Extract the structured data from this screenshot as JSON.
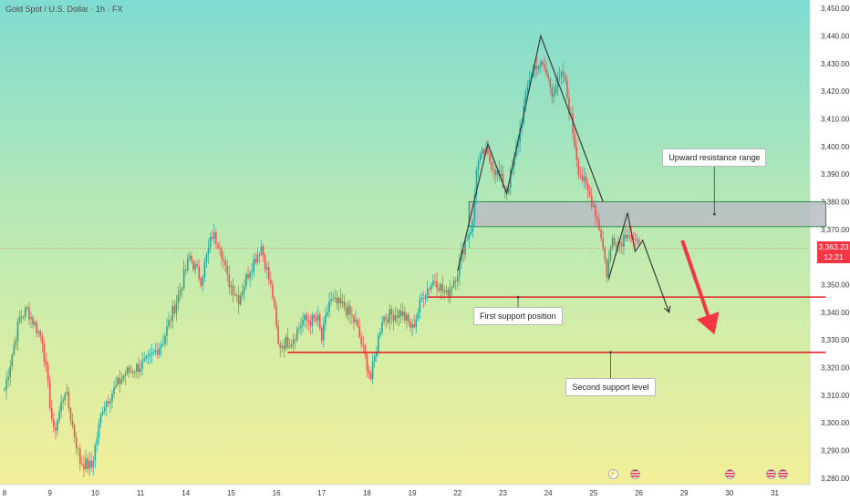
{
  "header": {
    "symbol_title": "Gold Spot / U.S. Dollar · 1h · FX"
  },
  "chart_data": {
    "type": "candlestick",
    "symbol": "Gold Spot / U.S. Dollar",
    "interval": "1h",
    "exchange": "FX",
    "ylim": [
      3275,
      3453
    ],
    "y_ticks": [
      3450,
      3440,
      3430,
      3420,
      3410,
      3400,
      3390,
      3380,
      3370,
      3360,
      3350,
      3340,
      3330,
      3320,
      3310,
      3300,
      3290,
      3280
    ],
    "y_tick_labels": [
      "3,450.00",
      "3,440.00",
      "3,430.00",
      "3,420.00",
      "3,410.00",
      "3,400.00",
      "3,390.00",
      "3,380.00",
      "3,370.00",
      "3,360.00",
      "3,350.00",
      "3,340.00",
      "3,330.00",
      "3,320.00",
      "3,310.00",
      "3,300.00",
      "3,290.00",
      "3,280.00"
    ],
    "x_ticks": [
      {
        "label": "8",
        "i": 0
      },
      {
        "label": "9",
        "i": 24
      },
      {
        "label": "10",
        "i": 48
      },
      {
        "label": "11",
        "i": 72
      },
      {
        "label": "14",
        "i": 96
      },
      {
        "label": "15",
        "i": 120
      },
      {
        "label": "16",
        "i": 144
      },
      {
        "label": "17",
        "i": 168
      },
      {
        "label": "18",
        "i": 192
      },
      {
        "label": "19",
        "i": 216
      },
      {
        "label": "22",
        "i": 240
      },
      {
        "label": "23",
        "i": 264
      },
      {
        "label": "24",
        "i": 288
      },
      {
        "label": "25",
        "i": 312
      },
      {
        "label": "26",
        "i": 336
      },
      {
        "label": "29",
        "i": 360
      },
      {
        "label": "30",
        "i": 384
      },
      {
        "label": "31",
        "i": 408
      }
    ],
    "current_price": {
      "value": 3363.23,
      "label": "3,363.23",
      "countdown": "12:21"
    },
    "anchors": [
      {
        "i": 0,
        "p": 3312
      },
      {
        "i": 8,
        "p": 3338
      },
      {
        "i": 12,
        "p": 3341
      },
      {
        "i": 20,
        "p": 3330
      },
      {
        "i": 26,
        "p": 3296
      },
      {
        "i": 32,
        "p": 3312
      },
      {
        "i": 40,
        "p": 3286
      },
      {
        "i": 46,
        "p": 3284
      },
      {
        "i": 52,
        "p": 3306
      },
      {
        "i": 64,
        "p": 3318
      },
      {
        "i": 76,
        "p": 3322
      },
      {
        "i": 84,
        "p": 3330
      },
      {
        "i": 92,
        "p": 3346
      },
      {
        "i": 98,
        "p": 3360
      },
      {
        "i": 104,
        "p": 3352
      },
      {
        "i": 110,
        "p": 3368
      },
      {
        "i": 114,
        "p": 3365
      },
      {
        "i": 118,
        "p": 3352
      },
      {
        "i": 124,
        "p": 3345
      },
      {
        "i": 130,
        "p": 3356
      },
      {
        "i": 136,
        "p": 3364
      },
      {
        "i": 142,
        "p": 3346
      },
      {
        "i": 145,
        "p": 3328
      },
      {
        "i": 152,
        "p": 3330
      },
      {
        "i": 158,
        "p": 3337
      },
      {
        "i": 166,
        "p": 3337
      },
      {
        "i": 168,
        "p": 3330
      },
      {
        "i": 172,
        "p": 3344
      },
      {
        "i": 180,
        "p": 3342
      },
      {
        "i": 186,
        "p": 3336
      },
      {
        "i": 190,
        "p": 3326
      },
      {
        "i": 194,
        "p": 3316
      },
      {
        "i": 200,
        "p": 3338
      },
      {
        "i": 210,
        "p": 3340
      },
      {
        "i": 216,
        "p": 3334
      },
      {
        "i": 222,
        "p": 3347
      },
      {
        "i": 228,
        "p": 3352
      },
      {
        "i": 234,
        "p": 3346
      },
      {
        "i": 240,
        "p": 3355
      },
      {
        "i": 244,
        "p": 3366
      },
      {
        "i": 248,
        "p": 3372
      },
      {
        "i": 250,
        "p": 3393
      },
      {
        "i": 254,
        "p": 3398
      },
      {
        "i": 258,
        "p": 3394
      },
      {
        "i": 262,
        "p": 3389
      },
      {
        "i": 266,
        "p": 3384
      },
      {
        "i": 270,
        "p": 3395
      },
      {
        "i": 274,
        "p": 3410
      },
      {
        "i": 278,
        "p": 3425
      },
      {
        "i": 282,
        "p": 3430
      },
      {
        "i": 286,
        "p": 3428
      },
      {
        "i": 290,
        "p": 3420
      },
      {
        "i": 296,
        "p": 3426
      },
      {
        "i": 300,
        "p": 3410
      },
      {
        "i": 304,
        "p": 3392
      },
      {
        "i": 308,
        "p": 3385
      },
      {
        "i": 312,
        "p": 3379
      },
      {
        "i": 316,
        "p": 3368
      },
      {
        "i": 319,
        "p": 3354
      },
      {
        "i": 322,
        "p": 3367
      },
      {
        "i": 326,
        "p": 3365
      },
      {
        "i": 330,
        "p": 3370
      },
      {
        "i": 334,
        "p": 3364
      },
      {
        "i": 336,
        "p": 3365
      }
    ],
    "zones": [
      {
        "name": "Upward resistance range",
        "top": 3380,
        "bottom": 3371,
        "i_start": 246,
        "i_end": 435
      }
    ],
    "lines": [
      {
        "name": "First support position",
        "price": 3345.5,
        "i_start": 224,
        "i_end": 435
      },
      {
        "name": "Second support level",
        "price": 3325.5,
        "i_start": 150,
        "i_end": 435
      }
    ],
    "pattern_path": [
      {
        "i": 240,
        "p": 3355
      },
      {
        "i": 256,
        "p": 3401
      },
      {
        "i": 266,
        "p": 3383
      },
      {
        "i": 284,
        "p": 3440
      },
      {
        "i": 317,
        "p": 3380
      }
    ],
    "projection_path": [
      {
        "i": 320,
        "p": 3352
      },
      {
        "i": 330,
        "p": 3376
      },
      {
        "i": 334,
        "p": 3362
      },
      {
        "i": 338,
        "p": 3366
      },
      {
        "i": 352,
        "p": 3340
      }
    ],
    "down_arrow": {
      "from": {
        "i": 359,
        "p": 3366
      },
      "to": {
        "i": 376,
        "p": 3332
      }
    },
    "annotations": [
      {
        "text": "Upward resistance range",
        "i": 376,
        "p": 3375.5,
        "label_p": 3396
      },
      {
        "text": "First support position",
        "i": 272,
        "p": 3345.5,
        "label_p": 3338.5
      },
      {
        "text": "Second support level",
        "i": 321,
        "p": 3325.5,
        "label_p": 3313
      }
    ],
    "events": [
      {
        "type": "flash-icon",
        "i": 322
      },
      {
        "type": "flag-icon",
        "i": 334
      },
      {
        "type": "flag-icon",
        "i": 384
      },
      {
        "type": "flag-icon",
        "i": 406
      },
      {
        "type": "flag-icon",
        "i": 412
      }
    ]
  },
  "colors": {
    "up": "#26a69a",
    "down": "#ef5350",
    "support_line": "#e3262c",
    "zone_fill": "#b8bdc4",
    "zone_border": "#2f8a4a",
    "price_tag": "#f23645",
    "pattern": "#3b3b3b",
    "arrow": "#f23645",
    "bg_top": "#7fdcd0",
    "bg_bottom": "#f3ef99"
  }
}
